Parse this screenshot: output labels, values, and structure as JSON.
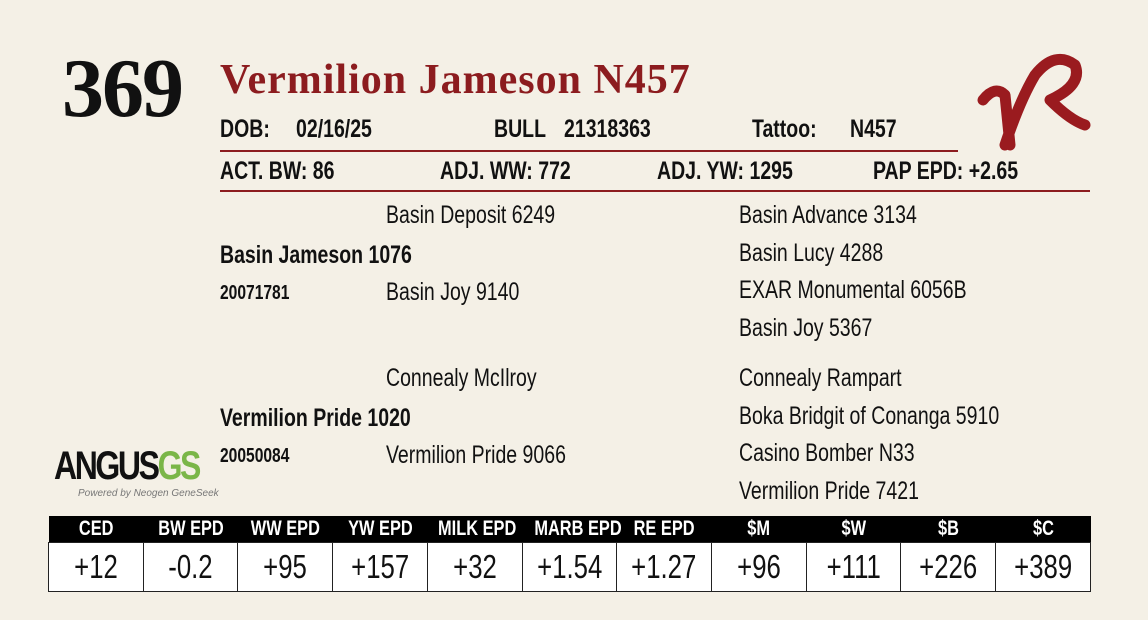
{
  "lot_number": "369",
  "title": "Vermilion Jameson N457",
  "info_row1": [
    {
      "label": "DOB:",
      "value": "02/16/25"
    },
    {
      "label": "BULL",
      "value": "21318363"
    },
    {
      "label": "Tattoo:",
      "value": "N457"
    }
  ],
  "info_row2": [
    {
      "label": "ACT. BW:",
      "value": "86"
    },
    {
      "label": "ADJ. WW:",
      "value": "772"
    },
    {
      "label": "ADJ. YW:",
      "value": "1295"
    },
    {
      "label": "PAP EPD:",
      "value": "+2.65"
    }
  ],
  "pedigree": {
    "sire": {
      "name": "Basin Jameson 1076",
      "registration": "20071781",
      "sire": "Basin Deposit 6249",
      "dam": "Basin Joy 9140",
      "grandparents": [
        "Basin Advance 3134",
        "Basin Lucy 4288",
        "EXAR Monumental 6056B",
        "Basin Joy 5367"
      ]
    },
    "dam": {
      "name": "Vermilion Pride 1020",
      "registration": "20050084",
      "sire": "Connealy McIlroy",
      "dam": "Vermilion Pride 9066",
      "grandparents": [
        "Connealy Rampart",
        "Boka Bridgit of Conanga 5910",
        "Casino Bomber N33",
        "Vermilion Pride 7421"
      ]
    }
  },
  "logo": {
    "brand": "ANGUS",
    "suffix": "GS",
    "tagline": "Powered by Neogen GeneSeek"
  },
  "epd_table": {
    "headers": [
      "CED",
      "BW EPD",
      "WW EPD",
      "YW EPD",
      "MILK EPD",
      "MARB EPD",
      "RE EPD",
      "$M",
      "$W",
      "$B",
      "$C"
    ],
    "values": [
      "+12",
      "-0.2",
      "+95",
      "+157",
      "+32",
      "+1.54",
      "+1.27",
      "+96",
      "+111",
      "+226",
      "+389"
    ]
  }
}
